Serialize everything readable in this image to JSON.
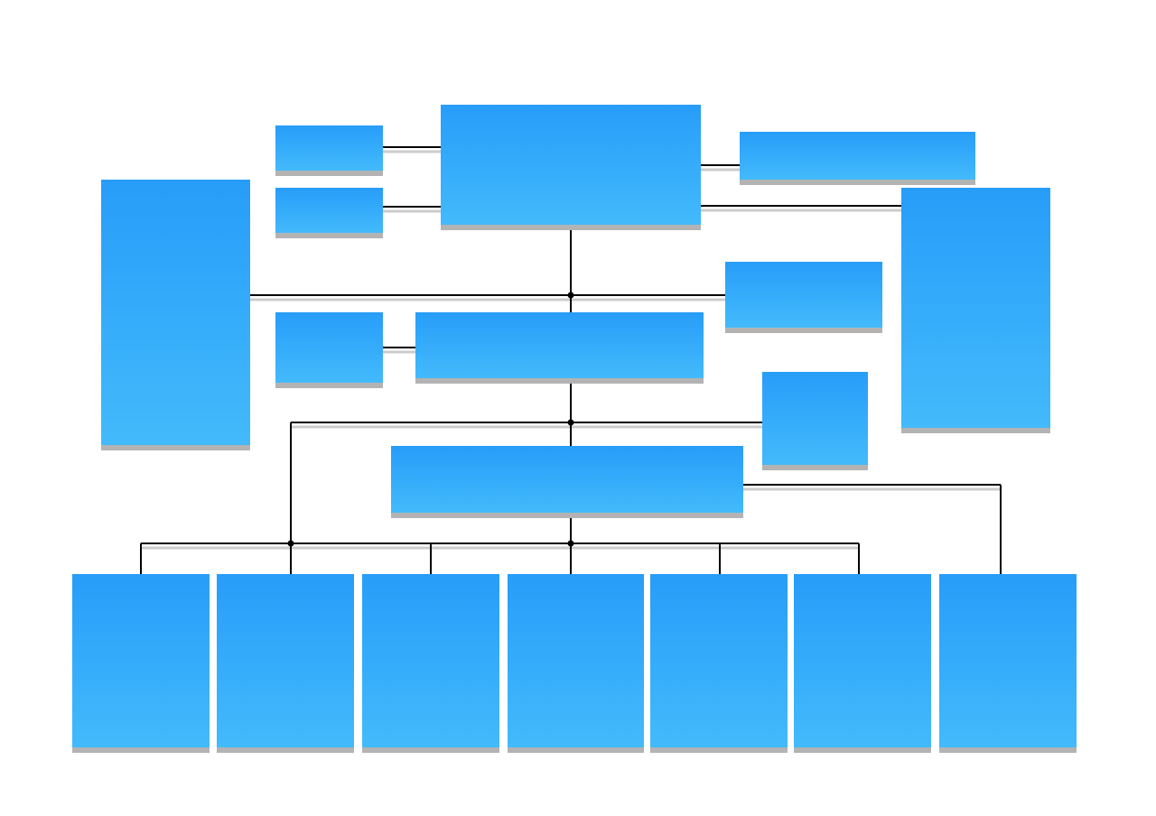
{
  "diagram": {
    "type": "org-chart",
    "box_labels": "none",
    "colors": {
      "box_top": "#279df9",
      "box_bottom": "#43bafb",
      "box_shadow": "#b3b3b3",
      "connector": "#000000",
      "connector_shadow": "#cccccc",
      "background": "#ffffff"
    }
  }
}
